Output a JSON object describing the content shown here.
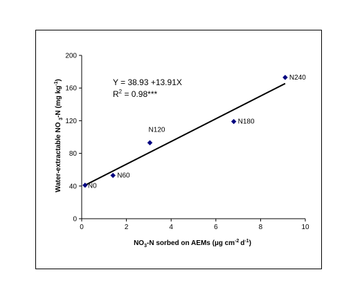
{
  "chart_data": {
    "type": "scatter",
    "title": "",
    "xlabel": {
      "pre": "NO",
      "sub1": "3",
      "mid": "-N sorbed on AEMs (µg cm",
      "sup": "-2 ",
      "post": "d",
      "sup2": "-1",
      "end": ")"
    },
    "ylabel": {
      "pre": "Water-extractable NO ",
      "sub1": "3",
      "mid": "-N (mg kg",
      "sup": "-1",
      "end": ")"
    },
    "xlim": [
      0,
      10
    ],
    "ylim": [
      0,
      200
    ],
    "xticks": [
      0,
      2,
      4,
      6,
      8,
      10
    ],
    "yticks": [
      0,
      40,
      80,
      120,
      160,
      200
    ],
    "points": [
      {
        "label": "N0",
        "x": 0.15,
        "y": 41
      },
      {
        "label": "N60",
        "x": 1.4,
        "y": 53
      },
      {
        "label": "N120",
        "x": 3.05,
        "y": 93
      },
      {
        "label": "N180",
        "x": 6.8,
        "y": 119
      },
      {
        "label": "N240",
        "x": 9.1,
        "y": 173
      }
    ],
    "trendline": {
      "intercept": 38.93,
      "slope": 13.91,
      "x_range": [
        0.15,
        9.1
      ]
    },
    "equation": "Y = 38.93 +13.91X",
    "r2": {
      "pre": "R",
      "sup": "2",
      "post": " = 0.98***"
    },
    "marker_color": "#000080",
    "grid": false
  }
}
